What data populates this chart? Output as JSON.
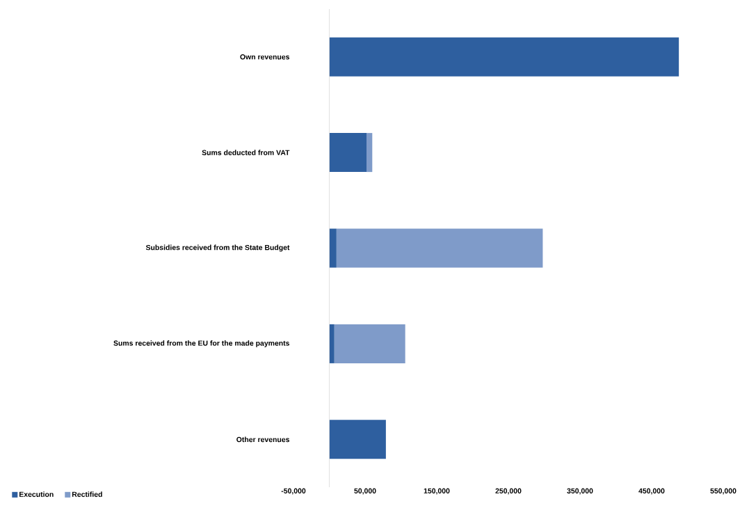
{
  "chart_data": {
    "type": "bar",
    "orientation": "horizontal",
    "stacked": true,
    "categories": [
      "Own revenues",
      "Sums deducted from VAT",
      "Subsidies received from the State Budget",
      "Sums received from the EU for the made payments",
      "Other revenues"
    ],
    "series": [
      {
        "name": "Execution",
        "color": "#2e5f9f",
        "values": [
          488000,
          52000,
          10000,
          7000,
          79000
        ]
      },
      {
        "name": "Rectified",
        "color": "#7f9bc9",
        "values": [
          0,
          8000,
          288000,
          99000,
          0
        ]
      }
    ],
    "xlim": [
      -50000,
      550000
    ],
    "xticks": [
      {
        "value": -50000,
        "label": "-50,000"
      },
      {
        "value": 50000,
        "label": "50,000"
      },
      {
        "value": 150000,
        "label": "150,000"
      },
      {
        "value": 250000,
        "label": "250,000"
      },
      {
        "value": 350000,
        "label": "350,000"
      },
      {
        "value": 450000,
        "label": "450,000"
      },
      {
        "value": 550000,
        "label": "550,000"
      }
    ],
    "legend": "bottom left",
    "grid": false
  }
}
